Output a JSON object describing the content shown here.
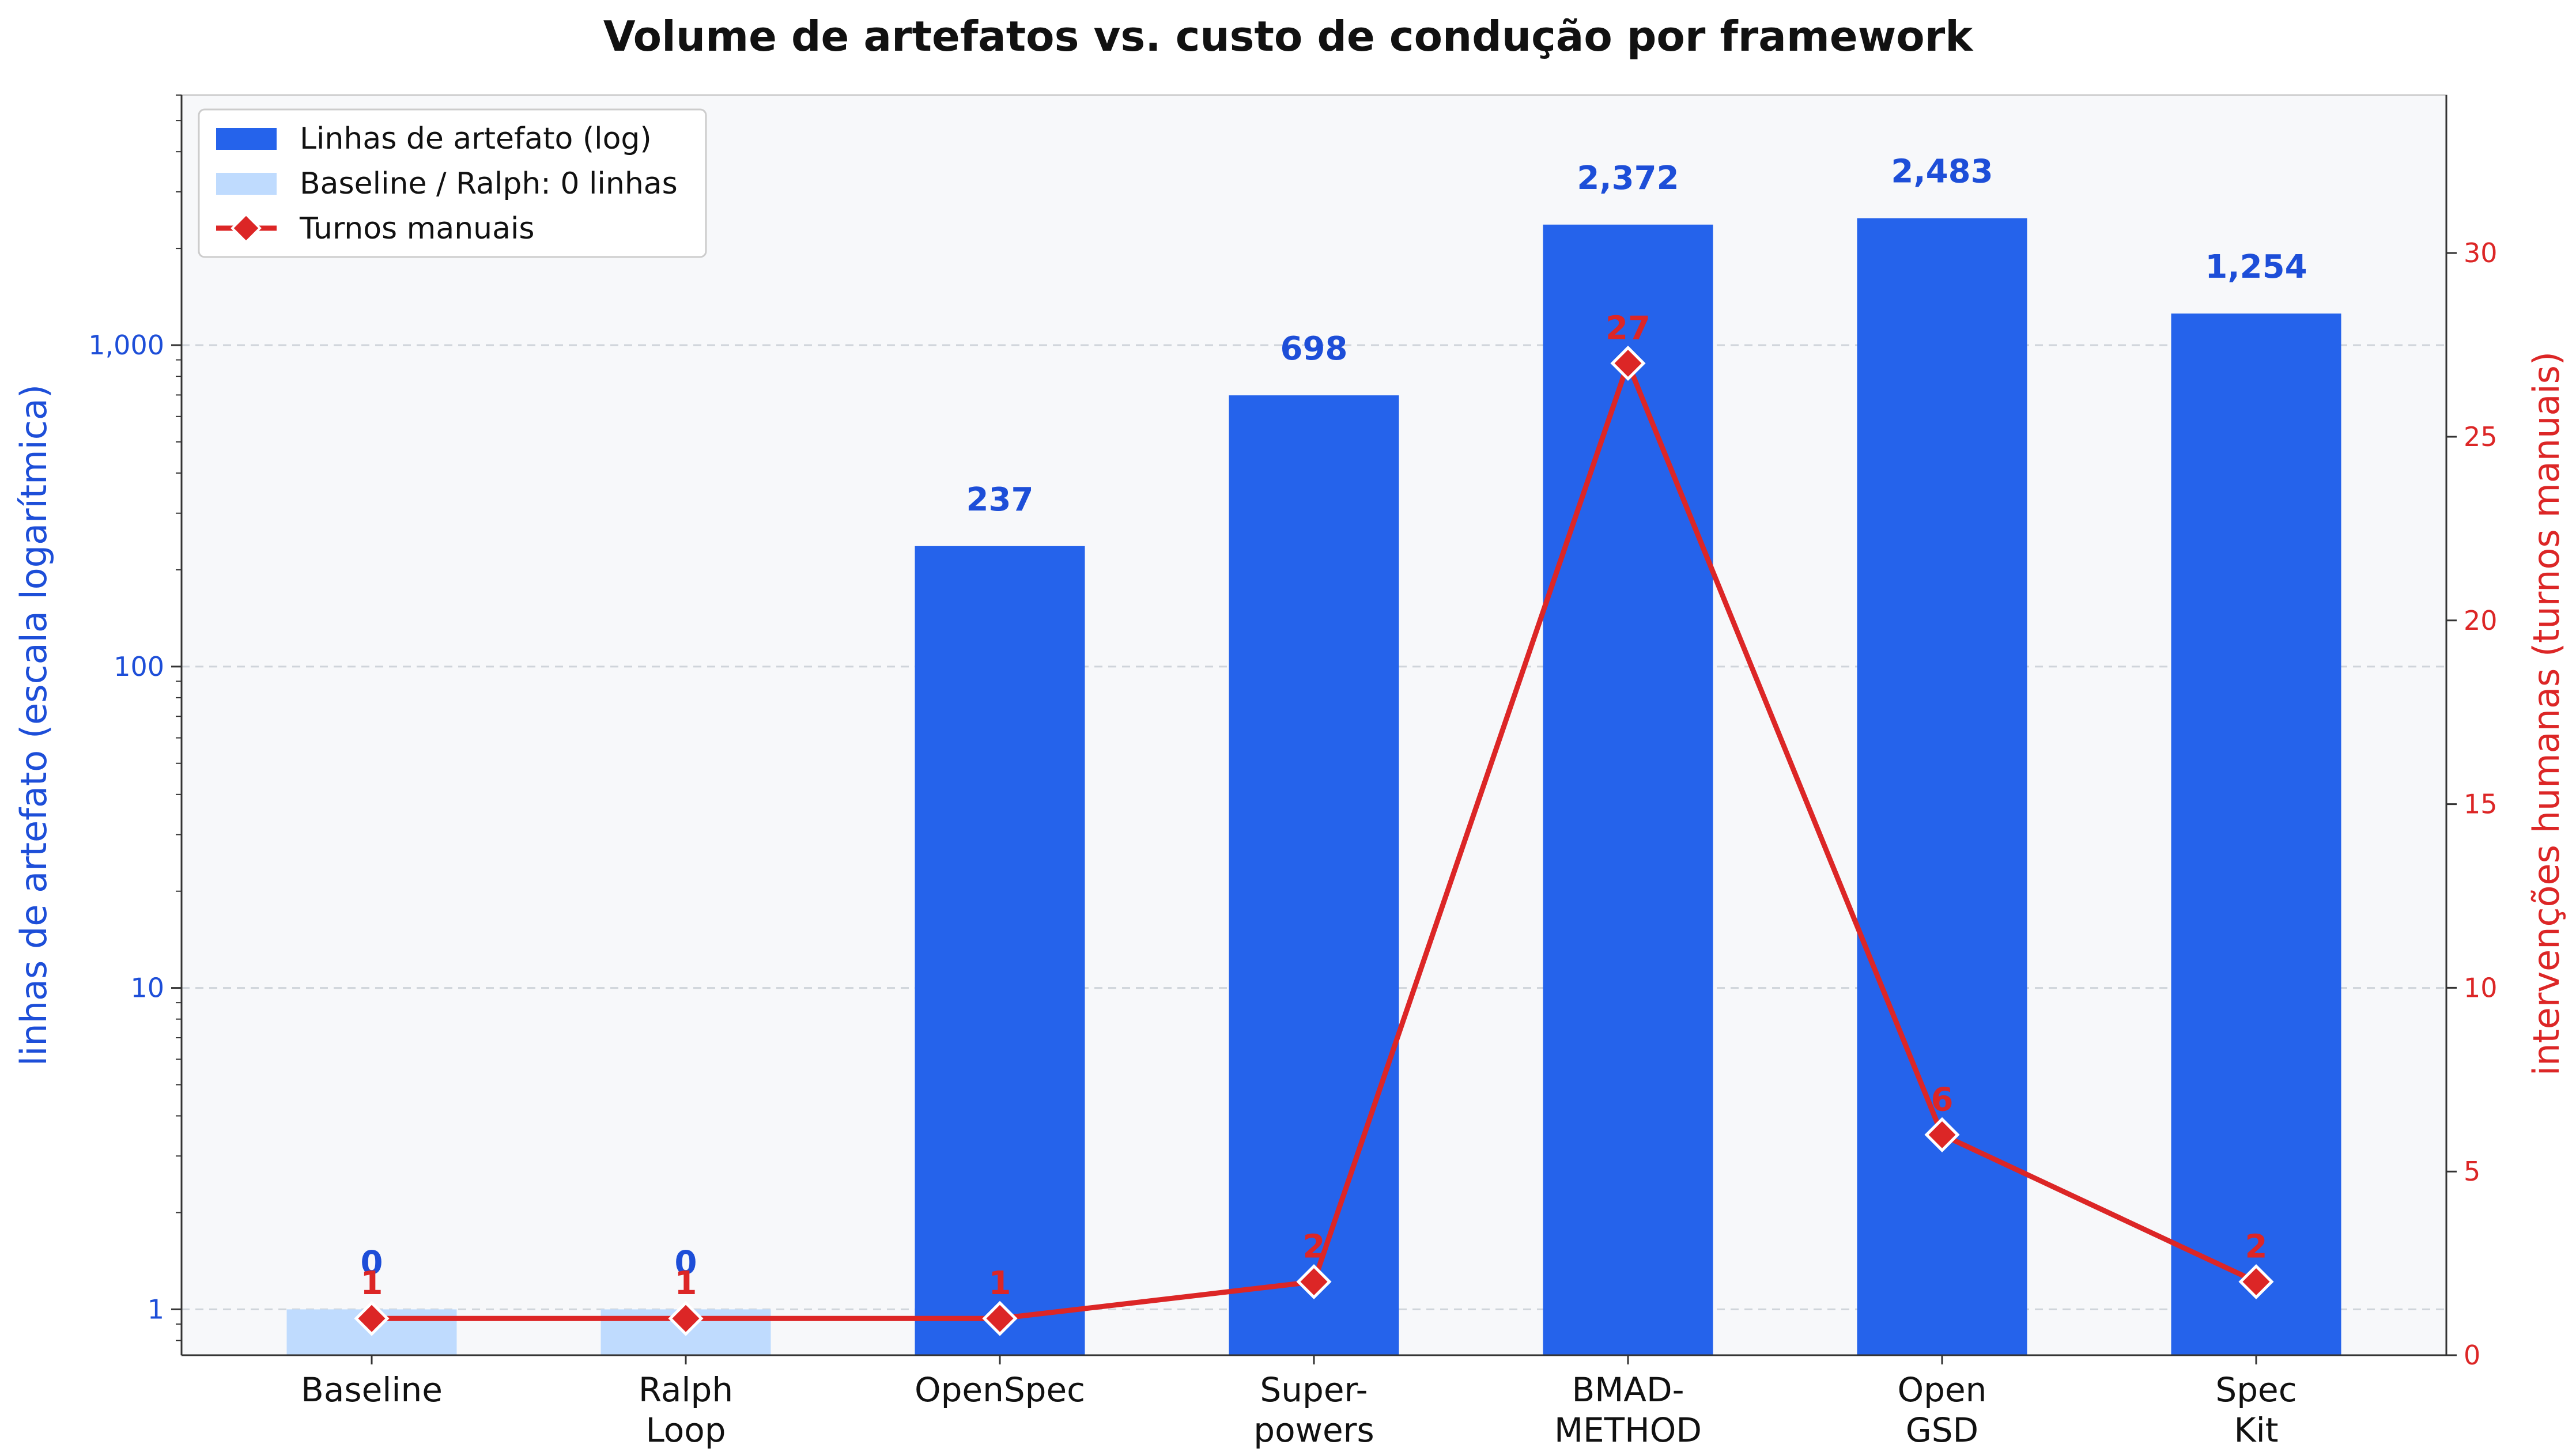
{
  "chart_data": {
    "type": "bar",
    "title": "Volume de artefatos vs. custo de condução por framework",
    "categories": [
      [
        "Baseline"
      ],
      [
        "Ralph",
        "Loop"
      ],
      [
        "OpenSpec"
      ],
      [
        "Super-",
        "powers"
      ],
      [
        "BMAD-",
        "METHOD"
      ],
      [
        "Open",
        "GSD"
      ],
      [
        "Spec",
        "Kit"
      ]
    ],
    "bars": {
      "name": "Linhas de artefato (log)",
      "values": [
        0,
        0,
        237,
        698,
        2372,
        2483,
        1254
      ],
      "labels": [
        "0",
        "0",
        "237",
        "698",
        "2,372",
        "2,483",
        "1,254"
      ],
      "color": "#2563eb"
    },
    "baseline_bars": {
      "name": "Baseline / Ralph: 0 linhas",
      "color": "#bfdbfe"
    },
    "line": {
      "name": "Turnos manuais",
      "values": [
        1,
        1,
        1,
        2,
        27,
        6,
        2
      ],
      "labels": [
        "1",
        "1",
        "1",
        "2",
        "27",
        "6",
        "2"
      ],
      "color": "#dc2626"
    },
    "y_left": {
      "label": "linhas de artefato (escala logarítmica)",
      "scale": "log",
      "range": [
        0.72,
        6000
      ],
      "ticks": [
        1,
        10,
        100,
        1000
      ],
      "tick_labels": [
        "1",
        "10",
        "100",
        "1,000"
      ],
      "color": "#1d4ed8"
    },
    "y_right": {
      "label": "intervenções humanas (turnos manuais)",
      "scale": "linear",
      "range": [
        0,
        34.3
      ],
      "ticks": [
        0,
        5,
        10,
        15,
        20,
        25,
        30
      ],
      "tick_labels": [
        "0",
        "5",
        "10",
        "15",
        "20",
        "25",
        "30"
      ],
      "color": "#dc2626"
    },
    "grid": true,
    "legend_position": "top-left"
  }
}
